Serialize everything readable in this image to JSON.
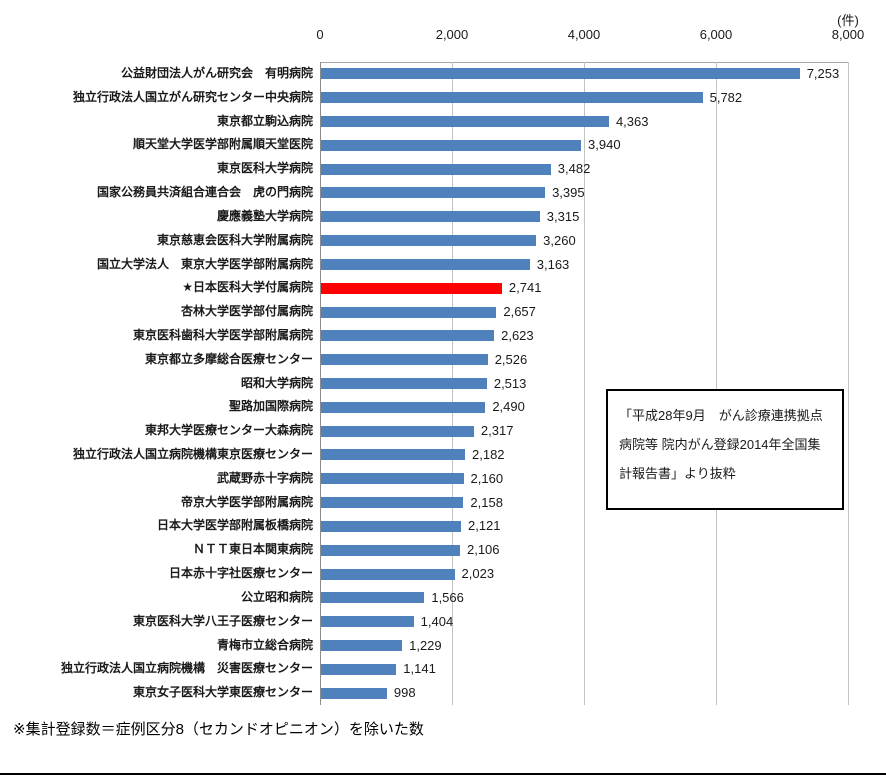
{
  "page": {
    "unit_label": "(件)",
    "footnote": "※集計登録数＝症例区分8（セカンドオピニオン）を除いた数",
    "annotation_lines": [
      "「平成28年9月　がん診療連携拠点",
      "病院等 院内がん登録2014年全国集",
      "計報告書」より抜粋"
    ]
  },
  "colors": {
    "bar": "#4F81BD",
    "highlight": "#FF0000",
    "gridline": "#C3C3C3",
    "axis": "#8C8C8C",
    "text": "#1A1A1A"
  },
  "chart_data": {
    "type": "bar",
    "orientation": "horizontal",
    "title": "",
    "xlabel": "(件)",
    "ylabel": "",
    "xlim": [
      0,
      8000
    ],
    "xticks": [
      0,
      2000,
      4000,
      6000,
      8000
    ],
    "xtick_labels": [
      "0",
      "2,000",
      "4,000",
      "6,000",
      "8,000"
    ],
    "grid": true,
    "legend": false,
    "highlight_index": 9,
    "categories": [
      "公益財団法人がん研究会　有明病院",
      "独立行政法人国立がん研究センター中央病院",
      "東京都立駒込病院",
      "順天堂大学医学部附属順天堂医院",
      "東京医科大学病院",
      "国家公務員共済組合連合会　虎の門病院",
      "慶應義塾大学病院",
      "東京慈恵会医科大学附属病院",
      "国立大学法人　東京大学医学部附属病院",
      "★日本医科大学付属病院",
      "杏林大学医学部付属病院",
      "東京医科歯科大学医学部附属病院",
      "東京都立多摩総合医療センター",
      "昭和大学病院",
      "聖路加国際病院",
      "東邦大学医療センター大森病院",
      "独立行政法人国立病院機構東京医療センター",
      "武蔵野赤十字病院",
      "帝京大学医学部附属病院",
      "日本大学医学部附属板橋病院",
      "ＮＴＴ東日本関東病院",
      "日本赤十字社医療センター",
      "公立昭和病院",
      "東京医科大学八王子医療センター",
      "青梅市立総合病院",
      "独立行政法人国立病院機構　災害医療センター",
      "東京女子医科大学東医療センター"
    ],
    "values": [
      7253,
      5782,
      4363,
      3940,
      3482,
      3395,
      3315,
      3260,
      3163,
      2741,
      2657,
      2623,
      2526,
      2513,
      2490,
      2317,
      2182,
      2160,
      2158,
      2121,
      2106,
      2023,
      1566,
      1404,
      1229,
      1141,
      998
    ],
    "value_labels": [
      "7,253",
      "5,782",
      "4,363",
      "3,940",
      "3,482",
      "3,395",
      "3,315",
      "3,260",
      "3,163",
      "2,741",
      "2,657",
      "2,623",
      "2,526",
      "2,513",
      "2,490",
      "2,317",
      "2,182",
      "2,160",
      "2,158",
      "2,121",
      "2,106",
      "2,023",
      "1,566",
      "1,404",
      "1,229",
      "1,141",
      "998"
    ]
  }
}
